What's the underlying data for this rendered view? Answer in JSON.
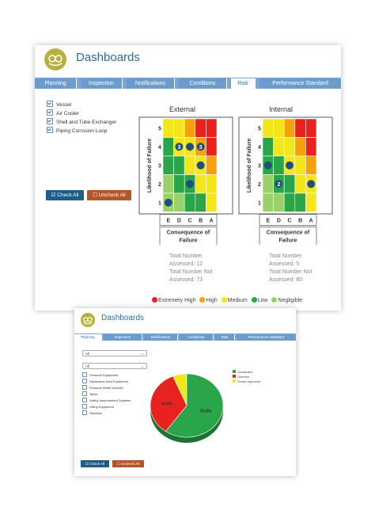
{
  "top": {
    "title": "Dashboards",
    "tabs": [
      "Planning",
      "Inspection",
      "Notifications",
      "Conditions",
      "Risk",
      "Performance Standard"
    ],
    "active_tab": "Risk",
    "checkboxes": [
      "Vessel",
      "Air Cooler",
      "Shell and Tube Exchanger",
      "Piping Corrosion Loop"
    ],
    "check_all": "Check All",
    "uncheck_all": "Uncheck All",
    "matrices": [
      {
        "title": "External",
        "y_label": "Likelihood of Failure",
        "x_label": "Consequence of Failure",
        "rows": [
          "5",
          "4",
          "3",
          "2",
          "1"
        ],
        "cols": [
          "E",
          "D",
          "C",
          "B",
          "A"
        ],
        "colors": [
          [
            "Y",
            "Y",
            "O",
            "R",
            "R"
          ],
          [
            "G",
            "Y",
            "Y",
            "O",
            "R"
          ],
          [
            "G",
            "G",
            "Y",
            "Y",
            "O"
          ],
          [
            "L",
            "G",
            "G",
            "Y",
            "Y"
          ],
          [
            "L",
            "L",
            "G",
            "G",
            "Y"
          ]
        ],
        "markers": [
          {
            "row": 1,
            "col": 1,
            "label": "3"
          },
          {
            "row": 1,
            "col": 2,
            "label": ""
          },
          {
            "row": 1,
            "col": 3,
            "label": "3"
          },
          {
            "row": 2,
            "col": 3,
            "label": ""
          },
          {
            "row": 3,
            "col": 2,
            "label": ""
          },
          {
            "row": 4,
            "col": 0,
            "label": ""
          }
        ],
        "stats": {
          "total": "Total Number",
          "assessed": "Assessed: 12",
          "not_assessed": "Total Number Not",
          "not_assessed_val": "Assessed: 73"
        }
      },
      {
        "title": "Internal",
        "y_label": "Likelihood of Failure",
        "x_label": "Consequence of Failure",
        "rows": [
          "5",
          "4",
          "3",
          "2",
          "1"
        ],
        "cols": [
          "E",
          "D",
          "C",
          "B",
          "A"
        ],
        "colors": [
          [
            "Y",
            "Y",
            "O",
            "R",
            "R"
          ],
          [
            "G",
            "Y",
            "Y",
            "O",
            "R"
          ],
          [
            "G",
            "G",
            "Y",
            "Y",
            "O"
          ],
          [
            "L",
            "G",
            "G",
            "Y",
            "Y"
          ],
          [
            "L",
            "L",
            "G",
            "G",
            "Y"
          ]
        ],
        "markers": [
          {
            "row": 2,
            "col": 0,
            "label": ""
          },
          {
            "row": 2,
            "col": 2,
            "label": ""
          },
          {
            "row": 3,
            "col": 1,
            "label": "2"
          },
          {
            "row": 3,
            "col": 4,
            "label": ""
          }
        ],
        "stats": {
          "total": "Total Number",
          "assessed": "Assessed: 5",
          "not_assessed": "Total Number Not",
          "not_assessed_val": "Assessed: 80"
        }
      }
    ],
    "legend": [
      {
        "label": "Extremely High",
        "color": "#e8231f"
      },
      {
        "label": "High",
        "color": "#f5a10d"
      },
      {
        "label": "Medium",
        "color": "#f3e61a"
      },
      {
        "label": "Low",
        "color": "#2aa54a"
      },
      {
        "label": "Negligible",
        "color": "#9bd16a"
      }
    ]
  },
  "bottom": {
    "title": "Dashboards",
    "tabs": [
      "Planning",
      "Inspection",
      "Notifications",
      "Conditions",
      "Risk",
      "Performance Standard"
    ],
    "active_tab": "Planning",
    "select1": "All",
    "select2": "All",
    "checkboxes": [
      "Pressure Equipment",
      "Hazardous Area Equipment",
      "Pressure Relief Devices",
      "Tanks",
      "Safety Instrumented Systems",
      "Lifting Equipment",
      "Pipelines"
    ],
    "check_all": "Check All",
    "uncheck_all": "Uncheck All",
    "pie_legend": [
      {
        "label": "Scheduled",
        "color": "#2aa54a"
      },
      {
        "label": "Overdue",
        "color": "#e8231f"
      },
      {
        "label": "Scope Approved",
        "color": "#f3e61a"
      }
    ]
  },
  "chart_data": {
    "type": "pie",
    "labels": [
      "Scheduled",
      "Overdue",
      "Scope Approved"
    ],
    "values": [
      59.8,
      34.0,
      6.2
    ],
    "value_labels": [
      "59.8%",
      "34.0%",
      ""
    ],
    "colors": [
      "#2aa54a",
      "#e8231f",
      "#f3e61a"
    ]
  }
}
